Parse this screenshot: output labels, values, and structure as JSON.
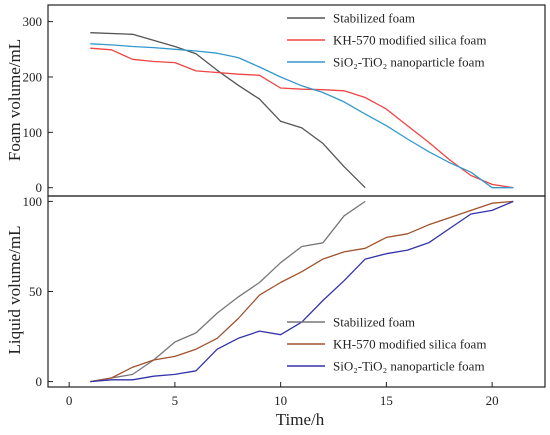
{
  "chart_data": [
    {
      "type": "line",
      "panel": "top",
      "ylabel": "Foam volume/mL",
      "ylim": [
        -15,
        330
      ],
      "yticks": [
        0,
        100,
        200,
        300
      ],
      "xlim": [
        -1,
        22.5
      ],
      "legend_position": "top-right",
      "series": [
        {
          "name": "Stabilized foam",
          "color": "#555555",
          "points": [
            [
              1,
              280
            ],
            [
              3,
              277
            ],
            [
              5,
              255
            ],
            [
              6,
              242
            ],
            [
              7,
              212
            ],
            [
              8,
              185
            ],
            [
              9,
              160
            ],
            [
              10,
              120
            ],
            [
              11,
              108
            ],
            [
              12,
              80
            ],
            [
              13,
              38
            ],
            [
              14,
              0
            ]
          ]
        },
        {
          "name": "KH-570 modified silica foam",
          "color": "#ee4444",
          "points": [
            [
              1,
              252
            ],
            [
              2,
              249
            ],
            [
              3,
              232
            ],
            [
              4,
              228
            ],
            [
              5,
              226
            ],
            [
              6,
              211
            ],
            [
              7,
              208
            ],
            [
              8,
              205
            ],
            [
              9,
              203
            ],
            [
              10,
              180
            ],
            [
              11,
              178
            ],
            [
              12,
              177
            ],
            [
              13,
              175
            ],
            [
              14,
              163
            ],
            [
              15,
              142
            ],
            [
              16,
              112
            ],
            [
              17,
              82
            ],
            [
              18,
              50
            ],
            [
              19,
              22
            ],
            [
              20,
              6
            ],
            [
              21,
              0
            ]
          ]
        },
        {
          "name": "SiO₂-TiO₂ nanoparticle foam",
          "color": "#3399cc",
          "points": [
            [
              1,
              260
            ],
            [
              2,
              258
            ],
            [
              3,
              255
            ],
            [
              4,
              253
            ],
            [
              5,
              250
            ],
            [
              6,
              247
            ],
            [
              7,
              243
            ],
            [
              8,
              235
            ],
            [
              9,
              218
            ],
            [
              10,
              200
            ],
            [
              11,
              184
            ],
            [
              12,
              172
            ],
            [
              13,
              155
            ],
            [
              14,
              133
            ],
            [
              15,
              112
            ],
            [
              16,
              88
            ],
            [
              17,
              65
            ],
            [
              18,
              45
            ],
            [
              19,
              28
            ],
            [
              20,
              0
            ],
            [
              21,
              0
            ]
          ]
        }
      ]
    },
    {
      "type": "line",
      "panel": "bottom",
      "xlabel": "Time/h",
      "ylabel": "Liquid volume/mL",
      "ylim": [
        -3,
        103
      ],
      "yticks": [
        0,
        50,
        100
      ],
      "xlim": [
        -1,
        22.5
      ],
      "xticks": [
        0,
        5,
        10,
        15,
        20
      ],
      "legend_position": "bottom-right",
      "series": [
        {
          "name": "Stabilized foam",
          "color": "#777777",
          "points": [
            [
              1,
              0
            ],
            [
              2,
              2
            ],
            [
              3,
              4
            ],
            [
              4,
              12
            ],
            [
              5,
              22
            ],
            [
              6,
              27
            ],
            [
              7,
              38
            ],
            [
              8,
              47
            ],
            [
              9,
              55
            ],
            [
              10,
              66
            ],
            [
              11,
              75
            ],
            [
              12,
              77
            ],
            [
              13,
              92
            ],
            [
              14,
              100
            ]
          ]
        },
        {
          "name": "KH-570 modified silica foam",
          "color": "#a0522d",
          "points": [
            [
              1,
              0
            ],
            [
              2,
              2
            ],
            [
              3,
              8
            ],
            [
              4,
              12
            ],
            [
              5,
              14
            ],
            [
              6,
              18
            ],
            [
              7,
              24
            ],
            [
              8,
              35
            ],
            [
              9,
              48
            ],
            [
              10,
              55
            ],
            [
              11,
              61
            ],
            [
              12,
              68
            ],
            [
              13,
              72
            ],
            [
              14,
              74
            ],
            [
              15,
              80
            ],
            [
              16,
              82
            ],
            [
              17,
              87
            ],
            [
              18,
              91
            ],
            [
              19,
              95
            ],
            [
              20,
              99
            ],
            [
              21,
              100
            ]
          ]
        },
        {
          "name": "SiO₂-TiO₂ nanoparticle foam",
          "color": "#3333aa",
          "points": [
            [
              1,
              0
            ],
            [
              2,
              1
            ],
            [
              3,
              1
            ],
            [
              4,
              3
            ],
            [
              5,
              4
            ],
            [
              6,
              6
            ],
            [
              7,
              18
            ],
            [
              8,
              24
            ],
            [
              9,
              28
            ],
            [
              10,
              26
            ],
            [
              11,
              33
            ],
            [
              12,
              45
            ],
            [
              13,
              56
            ],
            [
              14,
              68
            ],
            [
              15,
              71
            ],
            [
              16,
              73
            ],
            [
              17,
              77
            ],
            [
              18,
              85
            ],
            [
              19,
              93
            ],
            [
              20,
              95
            ],
            [
              21,
              100
            ]
          ]
        }
      ]
    }
  ]
}
